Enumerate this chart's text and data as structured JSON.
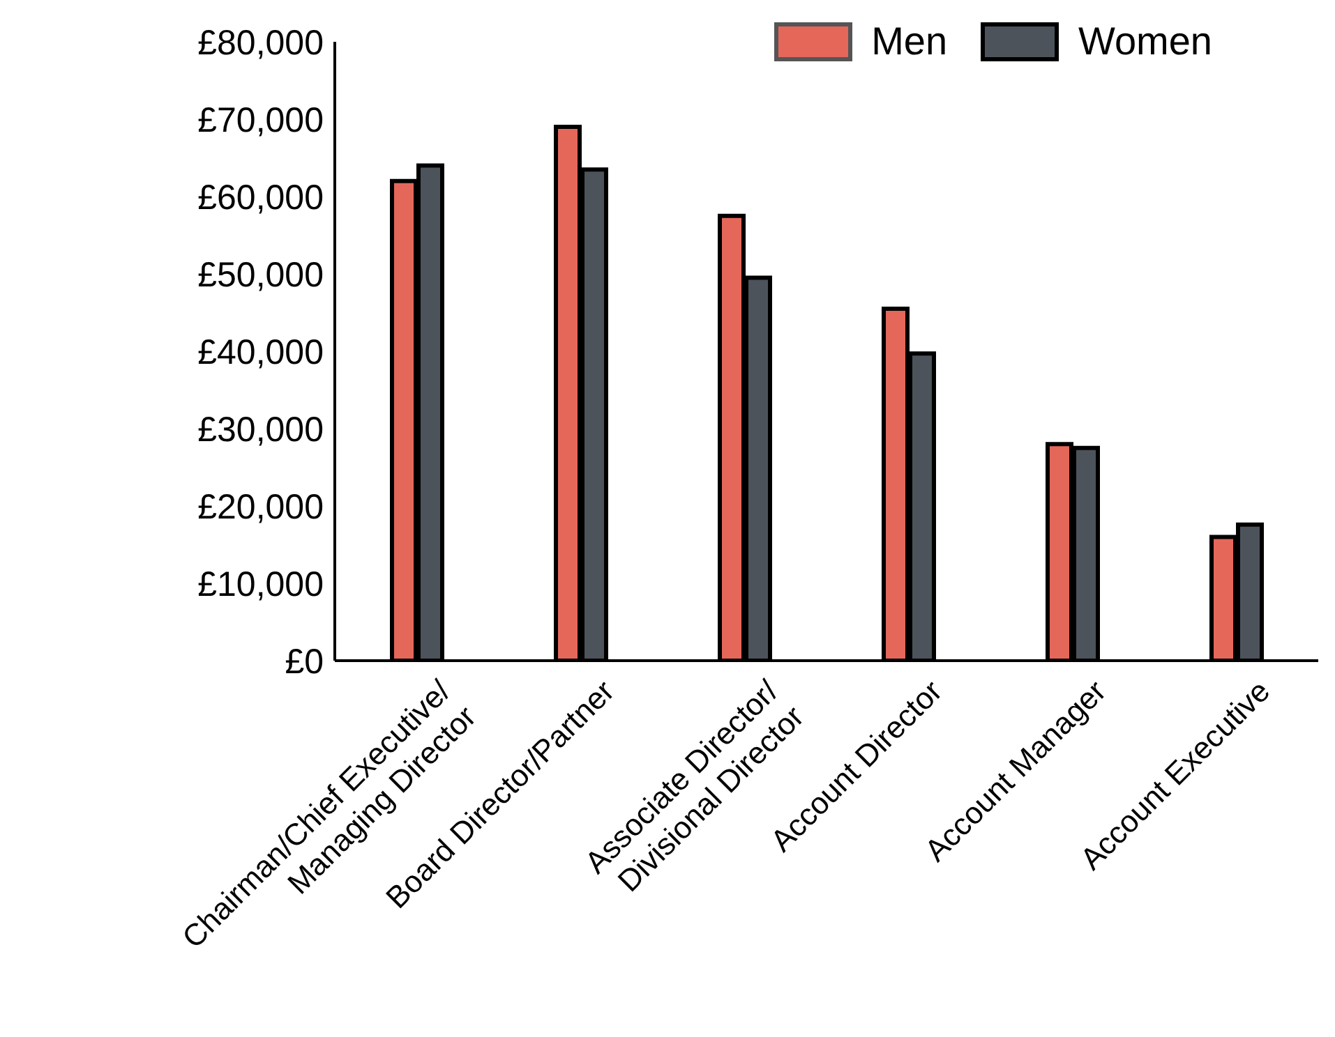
{
  "chart_data": {
    "type": "bar",
    "categories": [
      "Chairman/Chief Executive/ Managing Director",
      "Board Director/Partner",
      "Associate Director/ Divisional Director",
      "Account Director",
      "Account Manager",
      "Account Executive"
    ],
    "series": [
      {
        "name": "Men",
        "color": "#e5675a",
        "values": [
          62000,
          69000,
          57500,
          45500,
          28000,
          16000
        ]
      },
      {
        "name": "Women",
        "color": "#4c535b",
        "values": [
          64000,
          63500,
          49500,
          39700,
          27500,
          17600
        ]
      }
    ],
    "ylim": [
      0,
      80000
    ],
    "yticks": [
      {
        "value": 0,
        "label": "£0"
      },
      {
        "value": 10000,
        "label": "£10,000"
      },
      {
        "value": 20000,
        "label": "£20,000"
      },
      {
        "value": 30000,
        "label": "£30,000"
      },
      {
        "value": 40000,
        "label": "£40,000"
      },
      {
        "value": 50000,
        "label": "£50,000"
      },
      {
        "value": 60000,
        "label": "£60,000"
      },
      {
        "value": 70000,
        "label": "£70,000"
      },
      {
        "value": 80000,
        "label": "£80,000"
      }
    ],
    "grid": false,
    "legend": "top right"
  }
}
